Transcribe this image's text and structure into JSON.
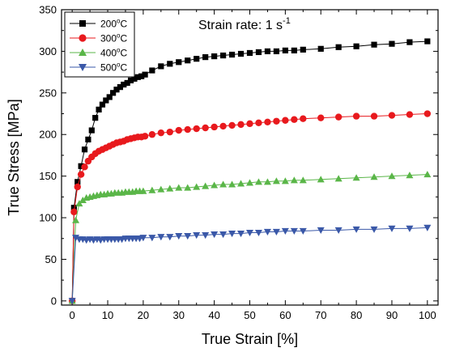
{
  "chart_data": {
    "type": "scatter",
    "title": "",
    "annotation": {
      "text": "Strain rate: 1 s",
      "superscript": "-1"
    },
    "xlabel": "True Strain [%]",
    "ylabel": "True Stress [MPa]",
    "xlim": [
      -3,
      103
    ],
    "ylim": [
      -5,
      350
    ],
    "xticks": [
      0,
      10,
      20,
      30,
      40,
      50,
      60,
      70,
      80,
      90,
      100
    ],
    "yticks": [
      0,
      50,
      100,
      150,
      200,
      250,
      300,
      350
    ],
    "grid": false,
    "legend_position": "top-left",
    "series": [
      {
        "name": "200°C",
        "label_main": "200",
        "label_sup": "o",
        "label_unit": "C",
        "marker": "square",
        "color": "#000000",
        "x": [
          0,
          0.5,
          1.5,
          2.5,
          3.5,
          4.5,
          5.5,
          6.5,
          7.5,
          8.5,
          9.5,
          10.5,
          11.5,
          12.5,
          13.5,
          14.5,
          15.5,
          16.5,
          17.5,
          18.5,
          19.5,
          20.5,
          22.5,
          25,
          27.5,
          30,
          32.5,
          35,
          37.5,
          40,
          42.5,
          45,
          47.5,
          50,
          52.5,
          55,
          57.5,
          60,
          62.5,
          65,
          70,
          75,
          80,
          85,
          90,
          95,
          100
        ],
        "y": [
          0,
          112,
          143,
          162,
          182,
          194,
          205,
          220,
          230,
          236,
          241,
          245,
          250,
          254,
          257,
          260,
          262,
          265,
          267,
          269,
          270,
          272,
          277,
          282,
          285,
          287,
          289,
          291,
          293,
          294,
          295,
          296,
          297,
          298,
          299,
          300,
          300,
          301,
          301,
          302,
          303,
          305,
          306,
          308,
          309,
          311,
          312
        ]
      },
      {
        "name": "300°C",
        "label_main": "300",
        "label_sup": "o",
        "label_unit": "C",
        "marker": "circle",
        "color": "#e8191d",
        "x": [
          0,
          0.5,
          1.5,
          2.5,
          3.5,
          4.5,
          5.5,
          6.5,
          7.5,
          8.5,
          9.5,
          10.5,
          11.5,
          12.5,
          13.5,
          14.5,
          15.5,
          16.5,
          17.5,
          18.5,
          19.5,
          20.5,
          22.5,
          25,
          27.5,
          30,
          32.5,
          35,
          37.5,
          40,
          42.5,
          45,
          47.5,
          50,
          52.5,
          55,
          57.5,
          60,
          62.5,
          65,
          70,
          75,
          80,
          85,
          90,
          95,
          100
        ],
        "y": [
          0,
          107,
          137,
          152,
          161,
          168,
          173,
          177,
          180,
          182,
          184,
          186,
          188,
          190,
          191,
          192,
          194,
          195,
          196,
          197,
          197,
          198,
          200,
          202,
          203,
          205,
          206,
          207,
          208,
          209,
          210,
          211,
          212,
          213,
          214,
          215,
          216,
          217,
          218,
          219,
          220,
          221,
          222,
          222,
          223,
          224,
          225
        ]
      },
      {
        "name": "400°C",
        "label_main": "400",
        "label_sup": "o",
        "label_unit": "C",
        "marker": "triangle-up",
        "color": "#5ab648",
        "x": [
          0,
          1,
          2,
          3,
          4,
          5,
          6,
          7,
          8,
          9,
          10,
          11,
          12,
          13,
          14,
          15,
          16,
          17,
          18,
          19,
          20,
          22.5,
          25,
          27.5,
          30,
          32.5,
          35,
          37.5,
          40,
          42.5,
          45,
          47.5,
          50,
          52.5,
          55,
          57.5,
          60,
          62.5,
          65,
          70,
          75,
          80,
          85,
          90,
          95,
          100
        ],
        "y": [
          0,
          97,
          117,
          121,
          124,
          125,
          126,
          127,
          128,
          128,
          129,
          129,
          130,
          130,
          130,
          131,
          131,
          131,
          132,
          132,
          132,
          133,
          134,
          135,
          136,
          136,
          137,
          138,
          139,
          140,
          140,
          141,
          142,
          143,
          143,
          144,
          144,
          145,
          145,
          146,
          147,
          148,
          149,
          150,
          151,
          152
        ]
      },
      {
        "name": "500°C",
        "label_main": "500",
        "label_sup": "o",
        "label_unit": "C",
        "marker": "triangle-down",
        "color": "#3a58a8",
        "x": [
          0,
          1,
          2,
          3,
          4,
          5,
          6,
          7,
          8,
          9,
          10,
          11,
          12,
          13,
          14,
          15,
          16,
          17,
          18,
          19,
          20,
          22.5,
          25,
          27.5,
          30,
          32.5,
          35,
          37.5,
          40,
          42.5,
          45,
          47.5,
          50,
          52.5,
          55,
          57.5,
          60,
          62.5,
          65,
          70,
          75,
          80,
          85,
          90,
          95,
          100
        ],
        "y": [
          0,
          76,
          74,
          74,
          73,
          74,
          73,
          74,
          73,
          74,
          74,
          74,
          74,
          74,
          74,
          75,
          75,
          75,
          75,
          75,
          76,
          76,
          77,
          77,
          78,
          78,
          79,
          79,
          80,
          80,
          81,
          81,
          82,
          82,
          83,
          83,
          84,
          84,
          84,
          85,
          85,
          86,
          86,
          87,
          87,
          88
        ]
      }
    ]
  }
}
